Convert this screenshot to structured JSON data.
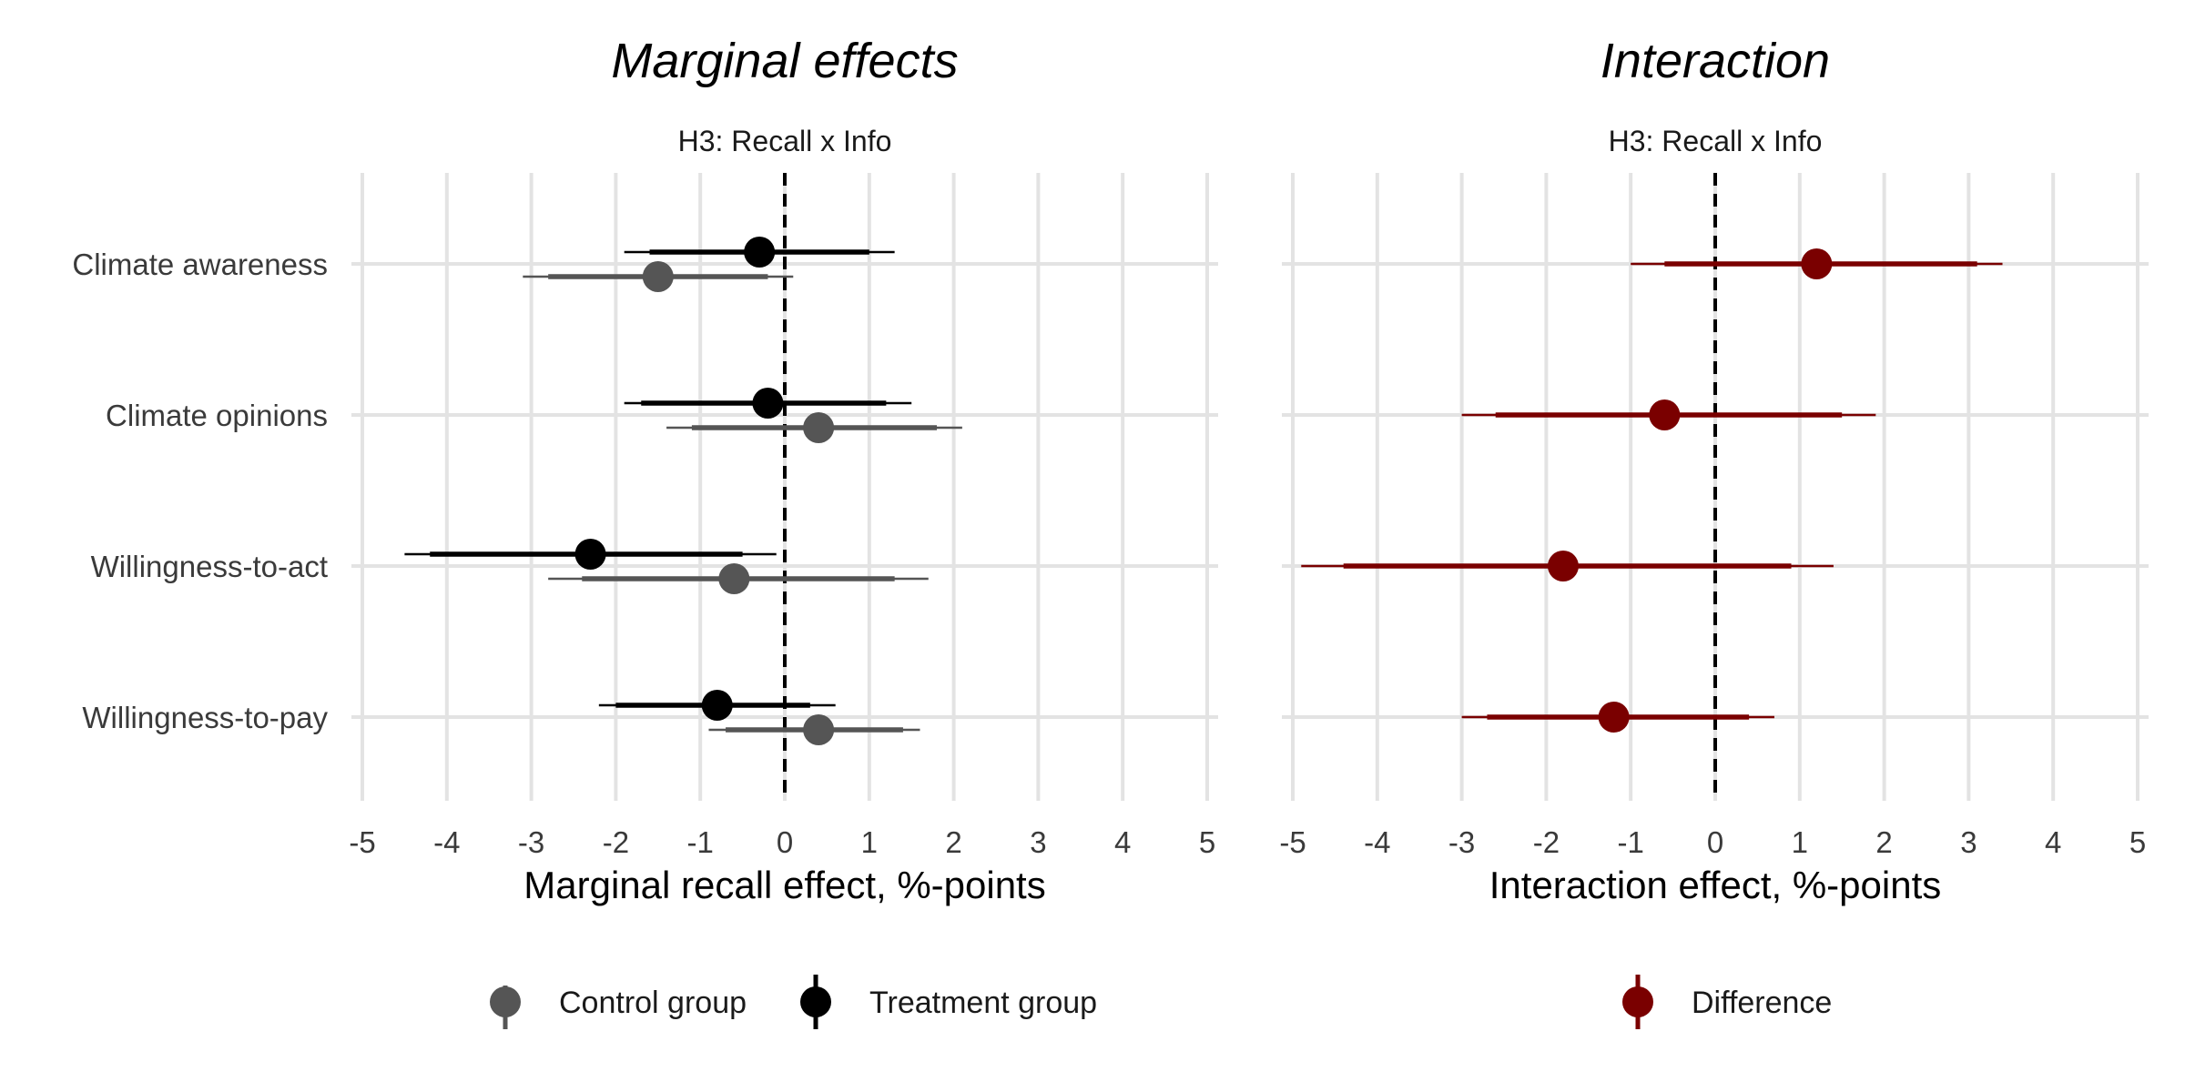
{
  "colors": {
    "control": "#555555",
    "treatment": "#000000",
    "difference": "#7a0000",
    "grid": "#e3e3e3"
  },
  "chart_data": [
    {
      "type": "scatter",
      "title": "Marginal effects",
      "strip_label": "H3: Recall x Info",
      "xlabel": "Marginal recall effect, %-points",
      "xlim": [
        -5,
        5
      ],
      "xticks": [
        "-5",
        "-4",
        "-3",
        "-2",
        "-1",
        "0",
        "1",
        "2",
        "3",
        "4",
        "5"
      ],
      "categories": [
        "Climate awareness",
        "Climate opinions",
        "Willingness-to-act",
        "Willingness-to-pay"
      ],
      "grid": true,
      "reference_line": 0,
      "legend_position": "bottom",
      "series": [
        {
          "name": "Control group",
          "color": "#555555",
          "estimate": [
            -1.5,
            0.4,
            -0.6,
            0.4
          ],
          "ci_inner": [
            [
              -2.8,
              -0.2
            ],
            [
              -1.1,
              1.8
            ],
            [
              -2.4,
              1.3
            ],
            [
              -0.7,
              1.4
            ]
          ],
          "ci_outer": [
            [
              -3.1,
              0.1
            ],
            [
              -1.4,
              2.1
            ],
            [
              -2.8,
              1.7
            ],
            [
              -0.9,
              1.6
            ]
          ]
        },
        {
          "name": "Treatment group",
          "color": "#000000",
          "estimate": [
            -0.3,
            -0.2,
            -2.3,
            -0.8
          ],
          "ci_inner": [
            [
              -1.6,
              1.0
            ],
            [
              -1.7,
              1.2
            ],
            [
              -4.2,
              -0.5
            ],
            [
              -2.0,
              0.3
            ]
          ],
          "ci_outer": [
            [
              -1.9,
              1.3
            ],
            [
              -1.9,
              1.5
            ],
            [
              -4.5,
              -0.1
            ],
            [
              -2.2,
              0.6
            ]
          ]
        }
      ]
    },
    {
      "type": "scatter",
      "title": "Interaction",
      "strip_label": "H3: Recall x Info",
      "xlabel": "Interaction effect, %-points",
      "xlim": [
        -5,
        5
      ],
      "xticks": [
        "-5",
        "-4",
        "-3",
        "-2",
        "-1",
        "0",
        "1",
        "2",
        "3",
        "4",
        "5"
      ],
      "categories": [
        "Climate awareness",
        "Climate opinions",
        "Willingness-to-act",
        "Willingness-to-pay"
      ],
      "grid": true,
      "reference_line": 0,
      "legend_position": "bottom",
      "series": [
        {
          "name": "Difference",
          "color": "#7a0000",
          "estimate": [
            1.2,
            -0.6,
            -1.8,
            -1.2
          ],
          "ci_inner": [
            [
              -0.6,
              3.1
            ],
            [
              -2.6,
              1.5
            ],
            [
              -4.4,
              0.9
            ],
            [
              -2.7,
              0.4
            ]
          ],
          "ci_outer": [
            [
              -1.0,
              3.4
            ],
            [
              -3.0,
              1.9
            ],
            [
              -4.9,
              1.4
            ],
            [
              -3.0,
              0.7
            ]
          ]
        }
      ]
    }
  ]
}
